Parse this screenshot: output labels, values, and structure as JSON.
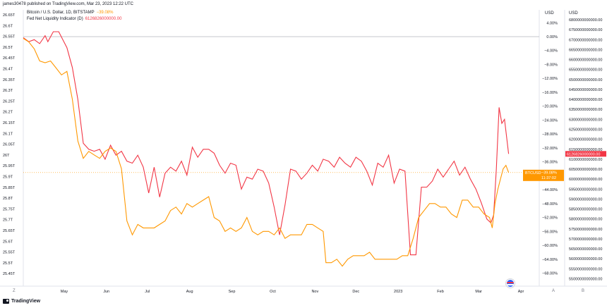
{
  "header": {
    "publisher_line": "james30478 published on TradingView.com, Mar 23, 2023 12:22 UTC"
  },
  "legend": [
    {
      "label": "Bitcoin / U.S. Dollar, 1D, BITSTAMP",
      "value": "−39.08%",
      "color": "#ff9800"
    },
    {
      "label": "Fed Net Liquidity Indicator (D)",
      "value": "6126826000000.00",
      "color": "#f23645"
    }
  ],
  "axes": {
    "left_ticks": [
      "26.65T",
      "26.6T",
      "26.55T",
      "26.5T",
      "26.45T",
      "26.4T",
      "26.35T",
      "26.3T",
      "26.25T",
      "26.2T",
      "26.15T",
      "26.1T",
      "26.05T",
      "26T",
      "25.95T",
      "25.9T",
      "25.85T",
      "25.8T",
      "25.75T",
      "25.7T",
      "25.65T",
      "25.6T",
      "25.55T",
      "25.5T",
      "25.45T"
    ],
    "mid_unit": "USD",
    "mid_ticks": [
      "4.00%",
      "0.00%",
      "−4.00%",
      "−8.00%",
      "−12.00%",
      "−16.00%",
      "−20.00%",
      "−24.00%",
      "−28.00%",
      "−32.00%",
      "−36.00%",
      "−40.00%",
      "−44.00%",
      "−48.00%",
      "−52.00%",
      "−56.00%",
      "−60.00%",
      "−64.00%",
      "−68.00%"
    ],
    "right_unit": "USD",
    "right_ticks": [
      "6800000000000.00",
      "6750000000000.00",
      "6700000000000.00",
      "6650000000000.00",
      "6600000000000.00",
      "6550000000000.00",
      "6500000000000.00",
      "6450000000000.00",
      "6400000000000.00",
      "6350000000000.00",
      "6300000000000.00",
      "6250000000000.00",
      "6200000000000.00",
      "6150000000000.00",
      "6100000000000.00",
      "6050000000000.00",
      "6000000000000.00",
      "5950000000000.00",
      "5900000000000.00",
      "5850000000000.00",
      "5800000000000.00",
      "5750000000000.00",
      "5700000000000.00",
      "5650000000000.00",
      "5600000000000.00",
      "5550000000000.00",
      "5500000000000.00"
    ],
    "x_ticks": [
      "May",
      "Jun",
      "Jul",
      "Aug",
      "Sep",
      "Oct",
      "Nov",
      "Dec",
      "2023",
      "Feb",
      "Mar",
      "Apr"
    ]
  },
  "price_labels": {
    "btc_symbol": "BTCUSD",
    "btc_value": "−39.08%",
    "btc_time": "11:37:02",
    "liq_value": "6126826000000.00"
  },
  "buttons": {
    "left_z": "Z",
    "a": "A",
    "b": "B"
  },
  "footer": {
    "brand": "TradingView"
  },
  "colors": {
    "btc": "#ff9800",
    "liquidity": "#f23645",
    "grid": "#e0e3eb",
    "zero_line": "#b2b5be"
  },
  "chart_data": {
    "type": "line",
    "title": "",
    "x_range": [
      "2022-04-01",
      "2023-04-01"
    ],
    "series": [
      {
        "name": "Bitcoin / U.S. Dollar, 1D, BITSTAMP",
        "unit": "percent change",
        "axis": "middle",
        "points": [
          [
            "2022-04-01",
            -0.5
          ],
          [
            "2022-04-05",
            -1.5
          ],
          [
            "2022-04-09",
            -3.5
          ],
          [
            "2022-04-13",
            -7
          ],
          [
            "2022-04-17",
            -7.5
          ],
          [
            "2022-04-21",
            -7
          ],
          [
            "2022-04-25",
            -9
          ],
          [
            "2022-04-29",
            -11
          ],
          [
            "2022-05-03",
            -10
          ],
          [
            "2022-05-07",
            -18
          ],
          [
            "2022-05-11",
            -30
          ],
          [
            "2022-05-15",
            -35
          ],
          [
            "2022-05-19",
            -33
          ],
          [
            "2022-05-23",
            -34
          ],
          [
            "2022-05-27",
            -35
          ],
          [
            "2022-05-31",
            -33
          ],
          [
            "2022-06-04",
            -32
          ],
          [
            "2022-06-08",
            -33
          ],
          [
            "2022-06-12",
            -38
          ],
          [
            "2022-06-16",
            -53
          ],
          [
            "2022-06-20",
            -57
          ],
          [
            "2022-06-24",
            -54
          ],
          [
            "2022-06-28",
            -55
          ],
          [
            "2022-07-02",
            -55
          ],
          [
            "2022-07-06",
            -55
          ],
          [
            "2022-07-10",
            -54
          ],
          [
            "2022-07-14",
            -53
          ],
          [
            "2022-07-18",
            -50
          ],
          [
            "2022-07-22",
            -49
          ],
          [
            "2022-07-26",
            -51
          ],
          [
            "2022-07-30",
            -48
          ],
          [
            "2022-08-03",
            -49
          ],
          [
            "2022-08-07",
            -48
          ],
          [
            "2022-08-11",
            -47
          ],
          [
            "2022-08-15",
            -46
          ],
          [
            "2022-08-19",
            -52
          ],
          [
            "2022-08-23",
            -53
          ],
          [
            "2022-08-27",
            -56
          ],
          [
            "2022-08-31",
            -55
          ],
          [
            "2022-09-04",
            -56
          ],
          [
            "2022-09-08",
            -55
          ],
          [
            "2022-09-12",
            -52
          ],
          [
            "2022-09-16",
            -56
          ],
          [
            "2022-09-20",
            -57
          ],
          [
            "2022-09-24",
            -56
          ],
          [
            "2022-09-28",
            -56
          ],
          [
            "2022-10-02",
            -57
          ],
          [
            "2022-10-06",
            -55
          ],
          [
            "2022-10-10",
            -58
          ],
          [
            "2022-10-14",
            -57
          ],
          [
            "2022-10-18",
            -57
          ],
          [
            "2022-10-22",
            -57
          ],
          [
            "2022-10-26",
            -54
          ],
          [
            "2022-10-30",
            -54
          ],
          [
            "2022-11-03",
            -55
          ],
          [
            "2022-11-07",
            -56
          ],
          [
            "2022-11-09",
            -65
          ],
          [
            "2022-11-13",
            -65
          ],
          [
            "2022-11-17",
            -64
          ],
          [
            "2022-11-21",
            -66
          ],
          [
            "2022-11-25",
            -64
          ],
          [
            "2022-11-29",
            -63
          ],
          [
            "2022-12-03",
            -63
          ],
          [
            "2022-12-07",
            -63
          ],
          [
            "2022-12-11",
            -62
          ],
          [
            "2022-12-15",
            -64
          ],
          [
            "2022-12-19",
            -64
          ],
          [
            "2022-12-23",
            -64
          ],
          [
            "2022-12-27",
            -64
          ],
          [
            "2022-12-31",
            -64
          ],
          [
            "2023-01-04",
            -63
          ],
          [
            "2023-01-08",
            -63
          ],
          [
            "2023-01-12",
            -58
          ],
          [
            "2023-01-16",
            -52
          ],
          [
            "2023-01-20",
            -50
          ],
          [
            "2023-01-24",
            -48
          ],
          [
            "2023-01-28",
            -48
          ],
          [
            "2023-02-01",
            -49
          ],
          [
            "2023-02-05",
            -49
          ],
          [
            "2023-02-09",
            -51
          ],
          [
            "2023-02-13",
            -52
          ],
          [
            "2023-02-17",
            -47
          ],
          [
            "2023-02-21",
            -47
          ],
          [
            "2023-02-25",
            -49
          ],
          [
            "2023-03-01",
            -49
          ],
          [
            "2023-03-05",
            -51
          ],
          [
            "2023-03-09",
            -52
          ],
          [
            "2023-03-11",
            -55
          ],
          [
            "2023-03-13",
            -48
          ],
          [
            "2023-03-15",
            -44
          ],
          [
            "2023-03-17",
            -41
          ],
          [
            "2023-03-19",
            -38
          ],
          [
            "2023-03-21",
            -37
          ],
          [
            "2023-03-23",
            -39.08
          ]
        ]
      },
      {
        "name": "Fed Net Liquidity Indicator (D)",
        "unit": "USD",
        "axis": "right",
        "points": [
          [
            "2022-04-01",
            6710000000000
          ],
          [
            "2022-04-05",
            6690000000000
          ],
          [
            "2022-04-09",
            6700000000000
          ],
          [
            "2022-04-13",
            6680000000000
          ],
          [
            "2022-04-17",
            6720000000000
          ],
          [
            "2022-04-19",
            6690000000000
          ],
          [
            "2022-04-23",
            6740000000000
          ],
          [
            "2022-04-27",
            6740000000000
          ],
          [
            "2022-05-03",
            6660000000000
          ],
          [
            "2022-05-07",
            6560000000000
          ],
          [
            "2022-05-11",
            6400000000000
          ],
          [
            "2022-05-15",
            6180000000000
          ],
          [
            "2022-05-19",
            6150000000000
          ],
          [
            "2022-05-23",
            6140000000000
          ],
          [
            "2022-05-27",
            6150000000000
          ],
          [
            "2022-05-31",
            6100000000000
          ],
          [
            "2022-06-04",
            6170000000000
          ],
          [
            "2022-06-08",
            6120000000000
          ],
          [
            "2022-06-12",
            6140000000000
          ],
          [
            "2022-06-16",
            6090000000000
          ],
          [
            "2022-06-20",
            6080000000000
          ],
          [
            "2022-06-24",
            6120000000000
          ],
          [
            "2022-06-28",
            6060000000000
          ],
          [
            "2022-07-02",
            5930000000000
          ],
          [
            "2022-07-06",
            6060000000000
          ],
          [
            "2022-07-10",
            5910000000000
          ],
          [
            "2022-07-14",
            6030000000000
          ],
          [
            "2022-07-18",
            6060000000000
          ],
          [
            "2022-07-22",
            6040000000000
          ],
          [
            "2022-07-26",
            6090000000000
          ],
          [
            "2022-07-30",
            6020000000000
          ],
          [
            "2022-08-03",
            6160000000000
          ],
          [
            "2022-08-07",
            6110000000000
          ],
          [
            "2022-08-11",
            6150000000000
          ],
          [
            "2022-08-15",
            6150000000000
          ],
          [
            "2022-08-19",
            6130000000000
          ],
          [
            "2022-08-23",
            6070000000000
          ],
          [
            "2022-08-27",
            6030000000000
          ],
          [
            "2022-08-31",
            6080000000000
          ],
          [
            "2022-09-04",
            6070000000000
          ],
          [
            "2022-09-08",
            5950000000000
          ],
          [
            "2022-09-12",
            6010000000000
          ],
          [
            "2022-09-16",
            6000000000000
          ],
          [
            "2022-09-20",
            6050000000000
          ],
          [
            "2022-09-24",
            6040000000000
          ],
          [
            "2022-09-28",
            5980000000000
          ],
          [
            "2022-10-02",
            5860000000000
          ],
          [
            "2022-10-06",
            5720000000000
          ],
          [
            "2022-10-10",
            5870000000000
          ],
          [
            "2022-10-14",
            6050000000000
          ],
          [
            "2022-10-18",
            6040000000000
          ],
          [
            "2022-10-22",
            6000000000000
          ],
          [
            "2022-10-26",
            6030000000000
          ],
          [
            "2022-10-30",
            6070000000000
          ],
          [
            "2022-11-03",
            6040000000000
          ],
          [
            "2022-11-07",
            6100000000000
          ],
          [
            "2022-11-11",
            6090000000000
          ],
          [
            "2022-11-15",
            6060000000000
          ],
          [
            "2022-11-19",
            6110000000000
          ],
          [
            "2022-11-23",
            6080000000000
          ],
          [
            "2022-11-27",
            6060000000000
          ],
          [
            "2022-12-01",
            6110000000000
          ],
          [
            "2022-12-05",
            6090000000000
          ],
          [
            "2022-12-09",
            6040000000000
          ],
          [
            "2022-12-13",
            5970000000000
          ],
          [
            "2022-12-17",
            6080000000000
          ],
          [
            "2022-12-21",
            6060000000000
          ],
          [
            "2022-12-25",
            6120000000000
          ],
          [
            "2022-12-29",
            5980000000000
          ],
          [
            "2023-01-02",
            6050000000000
          ],
          [
            "2023-01-06",
            6040000000000
          ],
          [
            "2023-01-10",
            5620000000000
          ],
          [
            "2023-01-14",
            5620000000000
          ],
          [
            "2023-01-18",
            5960000000000
          ],
          [
            "2023-01-22",
            5960000000000
          ],
          [
            "2023-01-26",
            5990000000000
          ],
          [
            "2023-01-30",
            6050000000000
          ],
          [
            "2023-02-03",
            6010000000000
          ],
          [
            "2023-02-07",
            6050000000000
          ],
          [
            "2023-02-11",
            6090000000000
          ],
          [
            "2023-02-15",
            6020000000000
          ],
          [
            "2023-02-19",
            6060000000000
          ],
          [
            "2023-02-23",
            6000000000000
          ],
          [
            "2023-02-27",
            5950000000000
          ],
          [
            "2023-03-03",
            5880000000000
          ],
          [
            "2023-03-07",
            5800000000000
          ],
          [
            "2023-03-10",
            5780000000000
          ],
          [
            "2023-03-12",
            5820000000000
          ],
          [
            "2023-03-14",
            6050000000000
          ],
          [
            "2023-03-16",
            6360000000000
          ],
          [
            "2023-03-18",
            6280000000000
          ],
          [
            "2023-03-20",
            6300000000000
          ],
          [
            "2023-03-23",
            6126826000000
          ]
        ]
      }
    ],
    "left_axis_range": [
      25.45,
      26.65
    ],
    "middle_axis_range": [
      -68,
      4
    ],
    "right_axis_range": [
      5500000000000,
      6800000000000
    ],
    "grid": false,
    "legend_position": "top-left"
  }
}
